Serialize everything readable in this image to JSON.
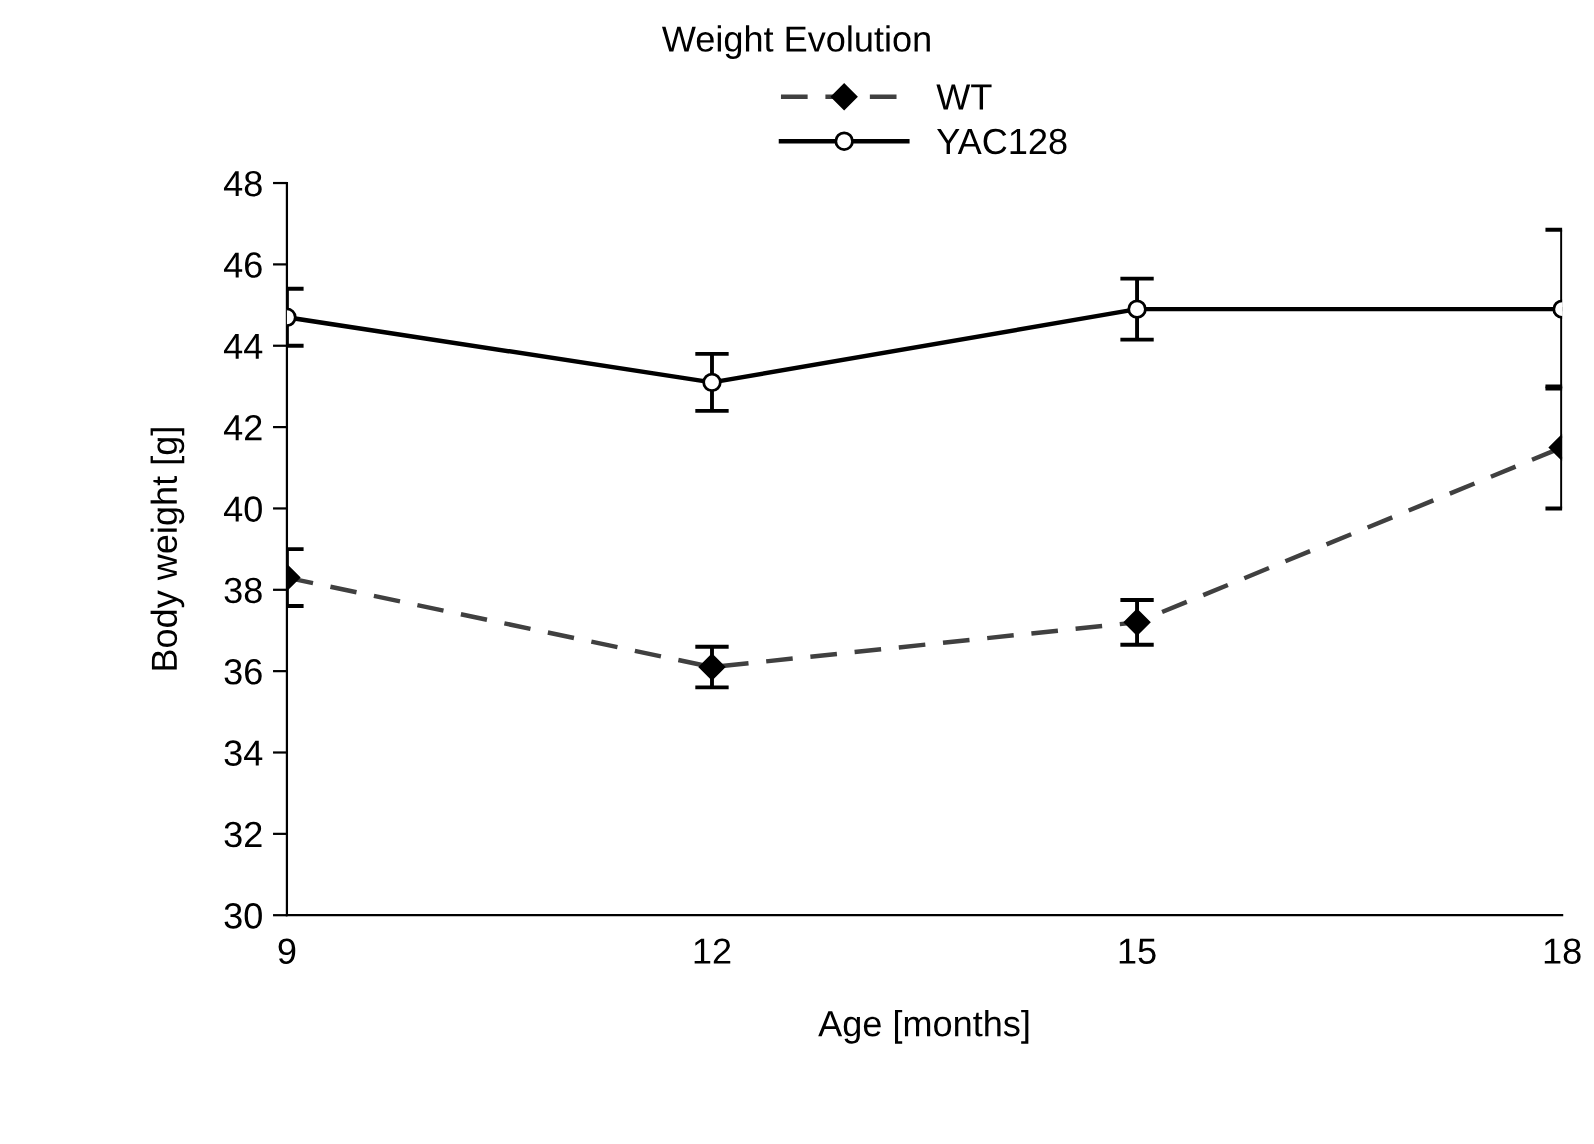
{
  "chart_data": {
    "type": "line",
    "title": "Weight Evolution",
    "xlabel": "Age [months]",
    "ylabel": "Body weight [g]",
    "x": [
      9,
      12,
      15,
      18
    ],
    "series": [
      {
        "name": "WT",
        "color": "#404040",
        "marker": "diamond",
        "line_style": "dashed",
        "values": [
          38.3,
          36.1,
          37.2,
          41.5
        ],
        "errors": [
          0.7,
          0.5,
          0.55,
          1.5
        ]
      },
      {
        "name": "YAC128",
        "color": "#000000",
        "marker": "circle",
        "line_style": "solid",
        "values": [
          44.7,
          43.1,
          44.9,
          44.9
        ],
        "errors": [
          0.7,
          0.7,
          0.75,
          1.95
        ]
      }
    ],
    "xlim": [
      9,
      18
    ],
    "xticks": [
      9,
      12,
      15,
      18
    ],
    "ylim": [
      30,
      48
    ],
    "yticks": [
      30,
      32,
      34,
      36,
      38,
      40,
      42,
      44,
      46,
      48
    ],
    "grid": false,
    "legend": "top"
  }
}
